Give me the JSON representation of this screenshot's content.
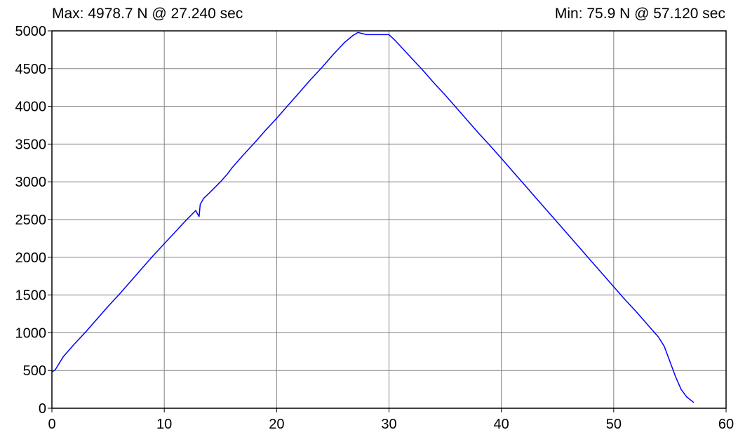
{
  "header": {
    "max_label": "Max: 4978.7 N @ 27.240 sec",
    "min_label": "Min: 75.9 N @ 57.120 sec"
  },
  "chart_data": {
    "type": "line",
    "title": "",
    "xlabel": "",
    "ylabel": "",
    "xlim": [
      0,
      60
    ],
    "ylim": [
      0,
      5000
    ],
    "x_ticks": [
      0,
      10,
      20,
      30,
      40,
      50,
      60
    ],
    "y_ticks": [
      0,
      500,
      1000,
      1500,
      2000,
      2500,
      3000,
      3500,
      4000,
      4500,
      5000
    ],
    "grid": true,
    "series": [
      {
        "color": "#0000ff",
        "x": [
          0.0,
          0.3,
          1.0,
          2.0,
          3.0,
          4.0,
          5.0,
          6.0,
          7.0,
          8.0,
          9.0,
          10.0,
          11.0,
          12.0,
          12.8,
          13.1,
          13.2,
          13.5,
          14.0,
          15.0,
          15.6,
          16.0,
          17.0,
          18.0,
          19.0,
          20.0,
          21.0,
          22.0,
          23.0,
          24.0,
          25.0,
          26.0,
          26.8,
          27.24,
          28.0,
          29.0,
          30.0,
          30.5,
          31.0,
          32.0,
          33.0,
          34.0,
          35.0,
          36.0,
          37.0,
          38.0,
          39.0,
          40.0,
          41.0,
          42.0,
          43.0,
          44.0,
          45.0,
          46.0,
          47.0,
          48.0,
          49.0,
          50.0,
          51.0,
          52.0,
          53.0,
          54.0,
          54.5,
          55.0,
          55.5,
          56.0,
          56.5,
          57.12
        ],
        "y": [
          480,
          510,
          680,
          850,
          1010,
          1180,
          1350,
          1510,
          1680,
          1850,
          2020,
          2180,
          2340,
          2500,
          2620,
          2540,
          2700,
          2780,
          2850,
          3000,
          3100,
          3180,
          3350,
          3510,
          3680,
          3840,
          4010,
          4180,
          4350,
          4510,
          4680,
          4840,
          4940,
          4978.7,
          4950,
          4950,
          4950,
          4880,
          4800,
          4640,
          4480,
          4310,
          4150,
          3980,
          3810,
          3640,
          3480,
          3310,
          3140,
          2970,
          2800,
          2630,
          2460,
          2290,
          2120,
          1950,
          1780,
          1610,
          1440,
          1280,
          1110,
          940,
          820,
          620,
          420,
          250,
          150,
          75.9
        ]
      }
    ]
  }
}
